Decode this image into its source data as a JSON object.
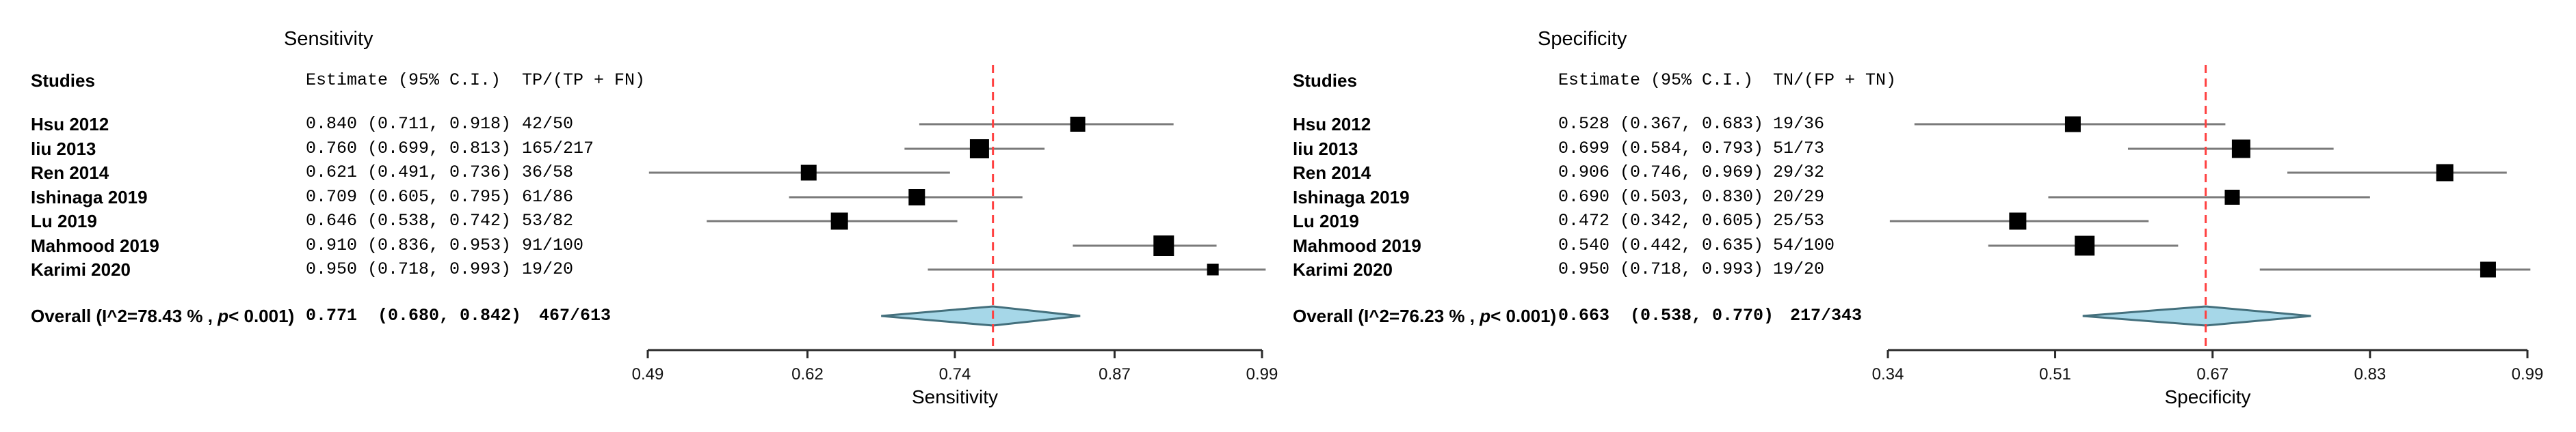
{
  "chart_data": [
    {
      "type": "forest",
      "title": "Sensitivity",
      "col_headers": {
        "studies": "Studies",
        "estimate": "Estimate (95% C.I.)",
        "count": "TP/(TP + FN)"
      },
      "xlabel": "Sensitivity",
      "xlim": [
        0.49,
        0.99
      ],
      "xticks": [
        "0.49",
        "0.62",
        "0.74",
        "0.87",
        "0.99"
      ],
      "ref_line": 0.771,
      "studies": [
        {
          "name": "Hsu 2012",
          "estimate": 0.84,
          "lower": 0.711,
          "upper": 0.918,
          "estimate_text": "0.840 (0.711, 0.918)",
          "count": "42/50",
          "box": 22
        },
        {
          "name": "liu 2013",
          "estimate": 0.76,
          "lower": 0.699,
          "upper": 0.813,
          "estimate_text": "0.760 (0.699, 0.813)",
          "count": "165/217",
          "box": 28
        },
        {
          "name": "Ren 2014",
          "estimate": 0.621,
          "lower": 0.491,
          "upper": 0.736,
          "estimate_text": "0.621 (0.491, 0.736)",
          "count": "36/58",
          "box": 23
        },
        {
          "name": "Ishinaga 2019",
          "estimate": 0.709,
          "lower": 0.605,
          "upper": 0.795,
          "estimate_text": "0.709 (0.605, 0.795)",
          "count": "61/86",
          "box": 24
        },
        {
          "name": "Lu 2019",
          "estimate": 0.646,
          "lower": 0.538,
          "upper": 0.742,
          "estimate_text": "0.646 (0.538, 0.742)",
          "count": "53/82",
          "box": 25
        },
        {
          "name": "Mahmood 2019",
          "estimate": 0.91,
          "lower": 0.836,
          "upper": 0.953,
          "estimate_text": "0.910 (0.836, 0.953)",
          "count": "91/100",
          "box": 30
        },
        {
          "name": "Karimi 2020",
          "estimate": 0.95,
          "lower": 0.718,
          "upper": 0.993,
          "estimate_text": "0.950 (0.718, 0.993)",
          "count": "19/20",
          "box": 17
        }
      ],
      "overall": {
        "label_prefix": "Overall (I^2=78.43 % , ",
        "p_italic": "p",
        "p_suffix": "< 0.001)",
        "estimate": 0.771,
        "lower": 0.68,
        "upper": 0.842,
        "estimate_text": "0.771  (0.680, 0.842)",
        "count": "467/613"
      }
    },
    {
      "type": "forest",
      "title": "Specificity",
      "col_headers": {
        "studies": "Studies",
        "estimate": "Estimate (95% C.I.)",
        "count": "TN/(FP + TN)"
      },
      "xlabel": "Specificity",
      "xlim": [
        0.34,
        0.99
      ],
      "xticks": [
        "0.34",
        "0.51",
        "0.67",
        "0.83",
        "0.99"
      ],
      "ref_line": 0.663,
      "studies": [
        {
          "name": "Hsu 2012",
          "estimate": 0.528,
          "lower": 0.367,
          "upper": 0.683,
          "estimate_text": "0.528 (0.367, 0.683)",
          "count": "19/36",
          "box": 23
        },
        {
          "name": "liu 2013",
          "estimate": 0.699,
          "lower": 0.584,
          "upper": 0.793,
          "estimate_text": "0.699 (0.584, 0.793)",
          "count": "51/73",
          "box": 27
        },
        {
          "name": "Ren 2014",
          "estimate": 0.906,
          "lower": 0.746,
          "upper": 0.969,
          "estimate_text": "0.906 (0.746, 0.969)",
          "count": "29/32",
          "box": 25
        },
        {
          "name": "Ishinaga 2019",
          "estimate": 0.69,
          "lower": 0.503,
          "upper": 0.83,
          "estimate_text": "0.690 (0.503, 0.830)",
          "count": "20/29",
          "box": 22
        },
        {
          "name": "Lu 2019",
          "estimate": 0.472,
          "lower": 0.342,
          "upper": 0.605,
          "estimate_text": "0.472 (0.342, 0.605)",
          "count": "25/53",
          "box": 25
        },
        {
          "name": "Mahmood 2019",
          "estimate": 0.54,
          "lower": 0.442,
          "upper": 0.635,
          "estimate_text": "0.540 (0.442, 0.635)",
          "count": "54/100",
          "box": 29
        },
        {
          "name": "Karimi 2020",
          "estimate": 0.95,
          "lower": 0.718,
          "upper": 0.993,
          "estimate_text": "0.950 (0.718, 0.993)",
          "count": "19/20",
          "box": 23
        }
      ],
      "overall": {
        "label_prefix": "Overall (I^2=76.23 % , ",
        "p_italic": "p",
        "p_suffix": "< 0.001)",
        "estimate": 0.663,
        "lower": 0.538,
        "upper": 0.77,
        "estimate_text": "0.663  (0.538, 0.770)",
        "count": "217/343"
      }
    }
  ],
  "colors": {
    "square": "#000000",
    "ci_line": "#7a7a7a",
    "ref_line": "#ff4040",
    "diamond_fill": "#a6d7e8",
    "diamond_stroke": "#44707d",
    "axis": "#2b2b2b",
    "text": "#000000"
  }
}
